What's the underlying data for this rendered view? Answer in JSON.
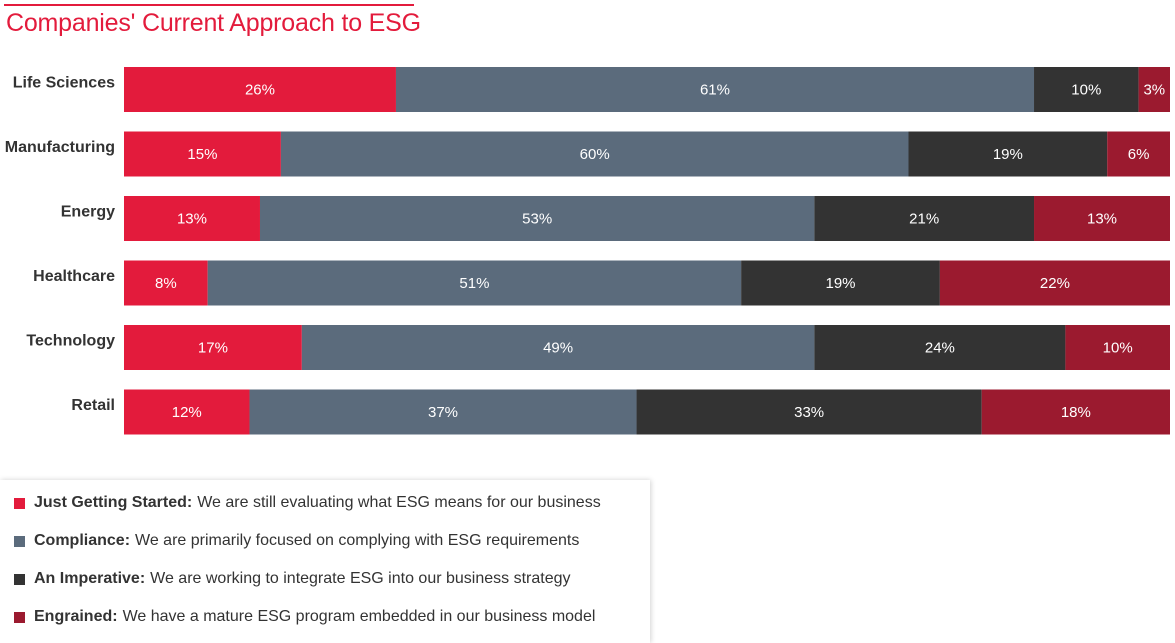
{
  "title": "Companies' Current Approach to ESG",
  "colors": {
    "just_getting_started": "#e31b3c",
    "compliance": "#5b6b7c",
    "an_imperative": "#333333",
    "engrained": "#9b1a2f",
    "title": "#e31b3c"
  },
  "legend": [
    {
      "name": "Just Getting Started:",
      "description": "We are still evaluating what ESG means for our business"
    },
    {
      "name": "Compliance:",
      "description": "We are primarily focused on complying with ESG requirements"
    },
    {
      "name": "An Imperative:",
      "description": "We are working to integrate ESG into our business strategy"
    },
    {
      "name": "Engrained:",
      "description": "We have a mature ESG program embedded in our business model"
    }
  ],
  "chart_data": {
    "type": "bar",
    "orientation": "horizontal",
    "stacked": true,
    "title": "Companies' Current Approach to ESG",
    "categories": [
      "Life Sciences",
      "Manufacturing",
      "Energy",
      "Healthcare",
      "Technology",
      "Retail"
    ],
    "series": [
      {
        "name": "Just Getting Started",
        "values": [
          26,
          15,
          13,
          8,
          17,
          12
        ]
      },
      {
        "name": "Compliance",
        "values": [
          61,
          60,
          53,
          51,
          49,
          37
        ]
      },
      {
        "name": "An Imperative",
        "values": [
          10,
          19,
          21,
          19,
          24,
          33
        ]
      },
      {
        "name": "Engrained",
        "values": [
          3,
          6,
          13,
          22,
          10,
          18
        ]
      }
    ],
    "labels": [
      [
        "26%",
        "61%",
        "10%",
        "3%"
      ],
      [
        "15%",
        "60%",
        "19%",
        "6%"
      ],
      [
        "13%",
        "53%",
        "21%",
        "13%"
      ],
      [
        "8%",
        "51%",
        "19%",
        "22%"
      ],
      [
        "17%",
        "49%",
        "24%",
        "10%"
      ],
      [
        "12%",
        "37%",
        "33%",
        "18%"
      ]
    ],
    "xlim": [
      0,
      100
    ],
    "grid": false,
    "legend_position": "bottom-left"
  }
}
